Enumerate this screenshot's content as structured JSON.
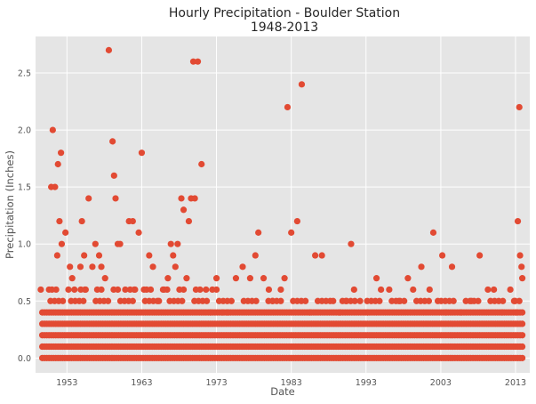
{
  "chart_data": {
    "type": "scatter",
    "title": "Hourly Precipitation - Boulder Station",
    "subtitle": "1948-2013",
    "xlabel": "Date",
    "ylabel": "Precipitation (Inches)",
    "xlim": [
      1948.8,
      2014.9
    ],
    "ylim": [
      -0.13,
      2.82
    ],
    "x_ticks": [
      1953,
      1963,
      1973,
      1983,
      1993,
      2003,
      2013
    ],
    "y_ticks": [
      0.0,
      0.5,
      1.0,
      1.5,
      2.0,
      2.5
    ],
    "grid": true,
    "background": "#E5E5E5",
    "marker_color": "#E24A33",
    "series": [
      {
        "x": [
          1949.5,
          1950.6,
          1950.9,
          1951.1,
          1951.4,
          1951.7,
          1951.8,
          1952.0,
          1952.2,
          1952.3,
          1952.8,
          1953.4,
          1953.7,
          1954.0,
          1954.8,
          1955.0,
          1955.3,
          1955.5,
          1955.9,
          1956.4,
          1956.8,
          1957.3,
          1957.6,
          1958.1,
          1958.6,
          1959.1,
          1959.3,
          1959.5,
          1959.8,
          1960.1,
          1960.8,
          1961.3,
          1961.8,
          1962.1,
          1962.6,
          1963.0,
          1963.3,
          1964.0,
          1964.5,
          1965.3,
          1966.0,
          1966.5,
          1966.9,
          1967.2,
          1967.5,
          1967.8,
          1968.3,
          1968.6,
          1969.0,
          1969.3,
          1969.6,
          1969.9,
          1970.1,
          1970.5,
          1971.0,
          1971.6,
          1972.2,
          1973.0,
          1973.8,
          1974.5,
          1975.6,
          1976.5,
          1977.5,
          1978.2,
          1978.6,
          1979.3,
          1980.0,
          1980.5,
          1981.6,
          1982.1,
          1982.5,
          1983.0,
          1983.8,
          1984.4,
          1985.5,
          1986.2,
          1987.1,
          1988.6,
          1989.5,
          1990.3,
          1991.0,
          1991.4,
          1992.2,
          1993.2,
          1994.4,
          1995.0,
          1996.1,
          1997.4,
          1998.6,
          1999.3,
          2000.4,
          2001.5,
          2002.0,
          2002.6,
          2003.2,
          2003.7,
          2004.5,
          2005.7,
          2007.1,
          2008.2,
          2009.3,
          2010.1,
          2011.2,
          2012.3,
          2012.8,
          2013.1,
          2013.3,
          2013.5,
          2013.6,
          2013.8,
          2013.9
        ],
        "values": [
          0.6,
          0.6,
          1.5,
          2.0,
          1.5,
          0.9,
          1.7,
          1.2,
          1.8,
          1.0,
          1.1,
          0.8,
          0.7,
          0.6,
          0.8,
          1.2,
          0.9,
          0.6,
          1.4,
          0.8,
          1.0,
          0.9,
          0.8,
          0.7,
          2.7,
          1.9,
          1.6,
          1.4,
          1.0,
          1.0,
          0.6,
          1.2,
          1.2,
          0.6,
          1.1,
          1.8,
          0.6,
          0.9,
          0.8,
          0.5,
          0.6,
          0.7,
          1.0,
          0.9,
          0.8,
          1.0,
          1.4,
          1.3,
          0.7,
          1.2,
          1.4,
          2.6,
          1.4,
          2.6,
          1.7,
          0.6,
          0.4,
          0.7,
          0.4,
          0.4,
          0.7,
          0.8,
          0.7,
          0.9,
          1.1,
          0.7,
          0.6,
          0.5,
          0.6,
          0.7,
          2.2,
          1.1,
          1.2,
          2.4,
          0.4,
          0.9,
          0.9,
          0.5,
          0.4,
          0.5,
          1.0,
          0.6,
          0.5,
          0.4,
          0.7,
          0.6,
          0.6,
          0.5,
          0.7,
          0.6,
          0.8,
          0.6,
          1.1,
          0.5,
          0.9,
          0.4,
          0.8,
          0.4,
          0.5,
          0.9,
          0.6,
          0.6,
          0.4,
          0.6,
          0.5,
          0.4,
          1.2,
          2.2,
          0.9,
          0.8,
          0.7
        ],
        "dense_levels": [
          0.0,
          0.1,
          0.2,
          0.3,
          0.4
        ],
        "dense_x_range": [
          1949.7,
          2013.9
        ]
      }
    ]
  }
}
